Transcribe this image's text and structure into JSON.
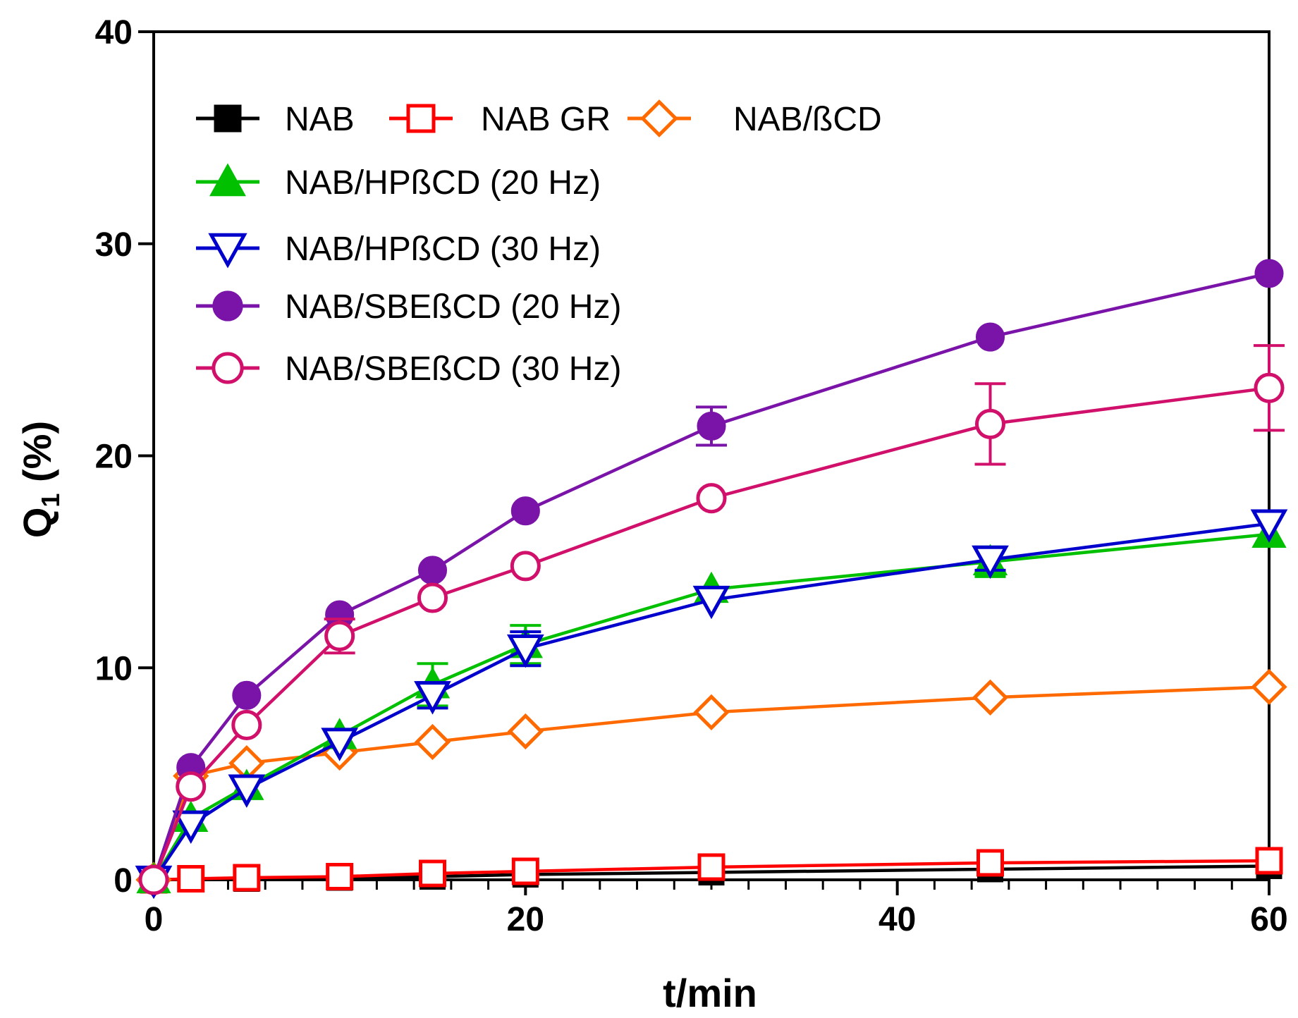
{
  "chart_data": {
    "type": "line",
    "title": "",
    "xlabel": "t/min",
    "ylabel_main": "Q",
    "ylabel_sub": "1",
    "ylabel_suffix": " (%)",
    "xlim": [
      0,
      60
    ],
    "ylim": [
      0,
      40
    ],
    "x_ticks": [
      0,
      20,
      40,
      60
    ],
    "y_ticks": [
      0,
      10,
      20,
      30,
      40
    ],
    "x_minor_step": 2,
    "legend_position": "top-left",
    "x": [
      0,
      2,
      5,
      10,
      15,
      20,
      30,
      45,
      60
    ],
    "series": [
      {
        "name": "NAB",
        "color": "#000000",
        "marker": "square",
        "filled": true,
        "values": [
          0,
          0.02,
          0.05,
          0.1,
          0.15,
          0.25,
          0.35,
          0.5,
          0.65
        ],
        "errors": []
      },
      {
        "name": "NAB GR",
        "color": "#ff0000",
        "marker": "square",
        "filled": false,
        "values": [
          0,
          0.05,
          0.1,
          0.15,
          0.3,
          0.4,
          0.6,
          0.8,
          0.9
        ],
        "errors": []
      },
      {
        "name": "NAB/ßCD",
        "color": "#ff6a00",
        "marker": "diamond",
        "filled": false,
        "values": [
          0,
          4.9,
          5.5,
          6.0,
          6.5,
          7.0,
          7.9,
          8.6,
          9.1
        ],
        "errors": []
      },
      {
        "name": "NAB/HPßCD (20 Hz)",
        "color": "#00c000",
        "marker": "triangle-up",
        "filled": true,
        "values": [
          0,
          2.9,
          4.4,
          6.8,
          9.2,
          11.1,
          13.7,
          15.0,
          16.3
        ],
        "errors": [
          [
            15,
            1.0
          ],
          [
            20,
            0.9
          ],
          [
            45,
            0.7
          ]
        ]
      },
      {
        "name": "NAB/HPßCD (30 Hz)",
        "color": "#0000cc",
        "marker": "triangle-down",
        "filled": false,
        "values": [
          0,
          2.6,
          4.3,
          6.5,
          8.7,
          10.9,
          13.2,
          15.1,
          16.8
        ],
        "errors": [
          [
            15,
            0.6
          ],
          [
            20,
            0.8
          ],
          [
            45,
            0.5
          ]
        ]
      },
      {
        "name": "NAB/SBEßCD (20 Hz)",
        "color": "#7a13a8",
        "marker": "circle",
        "filled": true,
        "values": [
          0,
          5.3,
          8.7,
          12.5,
          14.6,
          17.4,
          21.4,
          25.6,
          28.6
        ],
        "errors": [
          [
            30,
            0.9
          ]
        ]
      },
      {
        "name": "NAB/SBEßCD (30 Hz)",
        "color": "#d0106a",
        "marker": "circle",
        "filled": false,
        "values": [
          0,
          4.4,
          7.3,
          11.5,
          13.3,
          14.8,
          18.0,
          21.5,
          23.2
        ],
        "errors": [
          [
            10,
            0.8
          ],
          [
            45,
            1.9
          ],
          [
            60,
            2.0
          ]
        ]
      }
    ]
  }
}
